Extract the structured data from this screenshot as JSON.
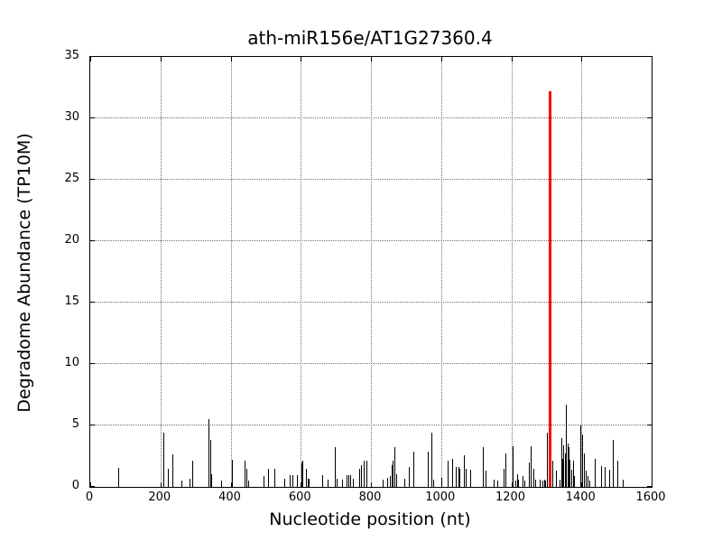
{
  "figure": {
    "title": "ath-miR156e/AT1G27360.4"
  },
  "chart_data": {
    "type": "bar",
    "title": "ath-miR156e/AT1G27360.4",
    "xlabel": "Nucleotide position (nt)",
    "ylabel": "Degradome Abundance (TP10M)",
    "xlim": [
      0,
      1600
    ],
    "ylim": [
      0,
      35
    ],
    "xticks": [
      0,
      200,
      400,
      600,
      800,
      1000,
      1200,
      1400,
      1600
    ],
    "yticks": [
      0,
      5,
      10,
      15,
      20,
      25,
      30,
      35
    ],
    "grid": {
      "show": true,
      "style": "dotted",
      "color": "#6e6e6e"
    },
    "legend": "none",
    "colors": {
      "background": "#ffffff",
      "bars": "#000000",
      "highlight": "#ff0000"
    },
    "series": [
      {
        "name": "degradome-abundance",
        "color": "#000000",
        "points": [
          [
            81,
            1.55
          ],
          [
            208,
            4.4
          ],
          [
            220,
            1.5
          ],
          [
            233,
            2.65
          ],
          [
            261,
            0.5
          ],
          [
            282,
            0.65
          ],
          [
            290,
            2.15
          ],
          [
            338,
            5.55
          ],
          [
            341,
            3.8
          ],
          [
            344,
            1.0
          ],
          [
            372,
            0.5
          ],
          [
            405,
            2.2
          ],
          [
            440,
            2.1
          ],
          [
            444,
            1.5
          ],
          [
            449,
            0.5
          ],
          [
            494,
            0.9
          ],
          [
            507,
            1.5
          ],
          [
            526,
            1.5
          ],
          [
            552,
            0.65
          ],
          [
            568,
            0.95
          ],
          [
            575,
            0.95
          ],
          [
            588,
            0.95
          ],
          [
            601,
            2.0
          ],
          [
            604,
            2.1
          ],
          [
            615,
            1.5
          ],
          [
            620,
            0.65
          ],
          [
            623,
            0.65
          ],
          [
            660,
            0.95
          ],
          [
            677,
            0.6
          ],
          [
            697,
            3.2
          ],
          [
            703,
            0.65
          ],
          [
            718,
            0.6
          ],
          [
            731,
            0.95
          ],
          [
            736,
            0.95
          ],
          [
            741,
            0.95
          ],
          [
            748,
            0.65
          ],
          [
            766,
            1.5
          ],
          [
            772,
            1.8
          ],
          [
            779,
            2.1
          ],
          [
            786,
            2.1
          ],
          [
            834,
            0.6
          ],
          [
            846,
            0.75
          ],
          [
            855,
            0.9
          ],
          [
            859,
            1.75
          ],
          [
            863,
            2.1
          ],
          [
            868,
            3.2
          ],
          [
            871,
            1.0
          ],
          [
            895,
            0.65
          ],
          [
            908,
            1.6
          ],
          [
            922,
            2.85
          ],
          [
            962,
            2.85
          ],
          [
            972,
            4.4
          ],
          [
            977,
            0.6
          ],
          [
            1000,
            0.7
          ],
          [
            1019,
            2.1
          ],
          [
            1032,
            2.25
          ],
          [
            1041,
            1.6
          ],
          [
            1049,
            1.6
          ],
          [
            1053,
            1.5
          ],
          [
            1065,
            2.6
          ],
          [
            1069,
            1.5
          ],
          [
            1082,
            1.4
          ],
          [
            1119,
            3.2
          ],
          [
            1126,
            1.35
          ],
          [
            1150,
            0.6
          ],
          [
            1160,
            0.5
          ],
          [
            1179,
            1.5
          ],
          [
            1183,
            2.7
          ],
          [
            1204,
            3.3
          ],
          [
            1211,
            0.5
          ],
          [
            1216,
            1.0
          ],
          [
            1220,
            0.6
          ],
          [
            1231,
            0.9
          ],
          [
            1238,
            0.5
          ],
          [
            1249,
            2.0
          ],
          [
            1255,
            3.3
          ],
          [
            1262,
            1.5
          ],
          [
            1268,
            0.6
          ],
          [
            1282,
            0.6
          ],
          [
            1288,
            0.5
          ],
          [
            1293,
            0.6
          ],
          [
            1297,
            0.55
          ],
          [
            1302,
            4.4
          ],
          [
            1307,
            0.6
          ],
          [
            1318,
            2.1
          ],
          [
            1328,
            1.3
          ],
          [
            1338,
            0.6
          ],
          [
            1342,
            4.0
          ],
          [
            1345,
            2.3
          ],
          [
            1349,
            3.4
          ],
          [
            1352,
            2.7
          ],
          [
            1356,
            6.7
          ],
          [
            1360,
            3.5
          ],
          [
            1363,
            3.2
          ],
          [
            1367,
            2.2
          ],
          [
            1371,
            1.4
          ],
          [
            1375,
            2.1
          ],
          [
            1379,
            0.9
          ],
          [
            1398,
            5.0
          ],
          [
            1402,
            4.3
          ],
          [
            1408,
            2.75
          ],
          [
            1412,
            1.3
          ],
          [
            1418,
            0.9
          ],
          [
            1423,
            0.5
          ],
          [
            1438,
            2.3
          ],
          [
            1455,
            1.7
          ],
          [
            1466,
            1.6
          ],
          [
            1479,
            1.4
          ],
          [
            1490,
            3.85
          ],
          [
            1502,
            2.1
          ],
          [
            1517,
            0.6
          ]
        ]
      },
      {
        "name": "highlighted-cleavage-site",
        "color": "#ff0000",
        "points": [
          [
            1310,
            32.2
          ]
        ]
      }
    ]
  }
}
